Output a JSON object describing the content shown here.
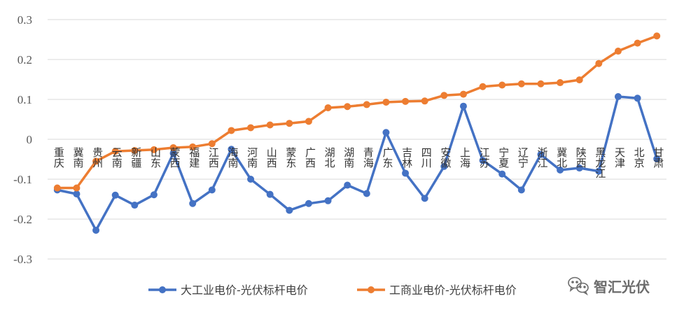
{
  "chart_data": {
    "type": "line",
    "title": "",
    "xlabel": "",
    "ylabel": "",
    "ylim": [
      -0.3,
      0.3
    ],
    "yticks": [
      0.3,
      0.2,
      0.1,
      0,
      -0.1,
      -0.2,
      -0.3
    ],
    "ytick_labels": [
      "0.3",
      "0.2",
      "0.1",
      "0",
      "-0.1",
      "-0.2",
      "-0.3"
    ],
    "grid": true,
    "legend_position": "bottom",
    "categories": [
      "重庆",
      "冀南",
      "贵州",
      "云南",
      "新疆",
      "山东",
      "蒙西",
      "福建",
      "江西",
      "海南",
      "河南",
      "山西",
      "蒙东",
      "广西",
      "湖北",
      "湖南",
      "青海",
      "广东",
      "吉林",
      "四川",
      "安徽",
      "上海",
      "江苏",
      "宁夏",
      "辽宁",
      "浙江",
      "冀北",
      "陕西",
      "黑龙江",
      "天津",
      "北京",
      "甘肃"
    ],
    "series": [
      {
        "name": "大工业电价-光伏标杆电价",
        "color": "#4472C4",
        "values": [
          -0.127,
          -0.137,
          -0.228,
          -0.14,
          -0.165,
          -0.139,
          -0.035,
          -0.161,
          -0.127,
          -0.025,
          -0.1,
          -0.138,
          -0.178,
          -0.161,
          -0.154,
          -0.115,
          -0.136,
          0.017,
          -0.085,
          -0.148,
          -0.068,
          0.083,
          -0.053,
          -0.087,
          -0.127,
          -0.038,
          -0.077,
          -0.072,
          -0.08,
          0.107,
          0.103,
          -0.049
        ]
      },
      {
        "name": "工商业电价-光伏标杆电价",
        "color": "#ED7D31",
        "values": [
          -0.122,
          -0.122,
          -0.055,
          -0.03,
          -0.028,
          -0.026,
          -0.021,
          -0.019,
          -0.011,
          0.022,
          0.029,
          0.036,
          0.04,
          0.045,
          0.079,
          0.082,
          0.087,
          0.093,
          0.095,
          0.096,
          0.11,
          0.113,
          0.132,
          0.136,
          0.139,
          0.139,
          0.142,
          0.149,
          0.19,
          0.221,
          0.241,
          0.259
        ]
      }
    ]
  },
  "watermark": {
    "text": "智汇光伏",
    "icon": "wechat-icon"
  }
}
